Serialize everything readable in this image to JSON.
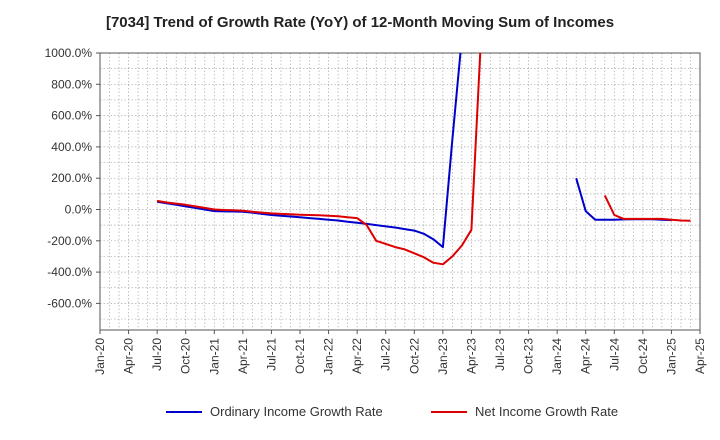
{
  "chart_data": {
    "type": "line",
    "title": "[7034]  Trend of Growth Rate (YoY) of 12-Month Moving Sum of Incomes",
    "xlabel": "",
    "ylabel": "",
    "x_tick_labels": [
      "Jan-20",
      "Apr-20",
      "Jul-20",
      "Oct-20",
      "Jan-21",
      "Apr-21",
      "Jul-21",
      "Oct-21",
      "Jan-22",
      "Apr-22",
      "Jul-22",
      "Oct-22",
      "Jan-23",
      "Apr-23",
      "Jul-23",
      "Oct-23",
      "Jan-24",
      "Apr-24",
      "Jul-24",
      "Oct-24",
      "Jan-25",
      "Apr-25"
    ],
    "y_tick_values": [
      1000,
      800,
      600,
      400,
      200,
      0,
      -200,
      -400,
      -600
    ],
    "y_tick_labels": [
      "1000.0%",
      "800.0%",
      "600.0%",
      "400.0%",
      "200.0%",
      "0.0%",
      "-200.0%",
      "-400.0%",
      "-600.0%"
    ],
    "ylim": [
      -770,
      1000
    ],
    "grid": true,
    "legend_position": "bottom",
    "series": [
      {
        "name": "Ordinary Income Growth Rate",
        "color": "#0000cc",
        "points": [
          [
            "2020-07",
            50
          ],
          [
            "2020-08",
            40
          ],
          [
            "2020-09",
            30
          ],
          [
            "2020-10",
            20
          ],
          [
            "2020-11",
            10
          ],
          [
            "2020-12",
            0
          ],
          [
            "2021-01",
            -10
          ],
          [
            "2021-02",
            -12
          ],
          [
            "2021-03",
            -13
          ],
          [
            "2021-04",
            -15
          ],
          [
            "2021-05",
            -20
          ],
          [
            "2021-06",
            -28
          ],
          [
            "2021-07",
            -35
          ],
          [
            "2021-08",
            -40
          ],
          [
            "2021-09",
            -45
          ],
          [
            "2021-10",
            -50
          ],
          [
            "2021-11",
            -55
          ],
          [
            "2021-12",
            -60
          ],
          [
            "2022-01",
            -65
          ],
          [
            "2022-02",
            -70
          ],
          [
            "2022-03",
            -78
          ],
          [
            "2022-04",
            -85
          ],
          [
            "2022-05",
            -92
          ],
          [
            "2022-06",
            -100
          ],
          [
            "2022-07",
            -108
          ],
          [
            "2022-08",
            -115
          ],
          [
            "2022-09",
            -125
          ],
          [
            "2022-10",
            -135
          ],
          [
            "2022-11",
            -155
          ],
          [
            "2022-12",
            -190
          ],
          [
            "2023-01",
            -240
          ],
          [
            "2023-02",
            450
          ],
          [
            "2023-03",
            1100
          ]
        ],
        "segment_2": [
          [
            "2024-03",
            200
          ],
          [
            "2024-04",
            -10
          ],
          [
            "2024-05",
            -65
          ],
          [
            "2024-06",
            -65
          ],
          [
            "2024-07",
            -65
          ],
          [
            "2024-08",
            -63
          ],
          [
            "2024-09",
            -62
          ],
          [
            "2024-10",
            -62
          ],
          [
            "2024-11",
            -62
          ],
          [
            "2024-12",
            -65
          ],
          [
            "2025-01",
            -68
          ]
        ]
      },
      {
        "name": "Net Income Growth Rate",
        "color": "#dd0000",
        "points": [
          [
            "2020-07",
            55
          ],
          [
            "2020-08",
            45
          ],
          [
            "2020-09",
            38
          ],
          [
            "2020-10",
            30
          ],
          [
            "2020-11",
            20
          ],
          [
            "2020-12",
            10
          ],
          [
            "2021-01",
            0
          ],
          [
            "2021-02",
            -3
          ],
          [
            "2021-03",
            -5
          ],
          [
            "2021-04",
            -8
          ],
          [
            "2021-05",
            -15
          ],
          [
            "2021-06",
            -20
          ],
          [
            "2021-07",
            -25
          ],
          [
            "2021-08",
            -28
          ],
          [
            "2021-09",
            -30
          ],
          [
            "2021-10",
            -33
          ],
          [
            "2021-11",
            -35
          ],
          [
            "2021-12",
            -37
          ],
          [
            "2022-01",
            -40
          ],
          [
            "2022-02",
            -43
          ],
          [
            "2022-03",
            -50
          ],
          [
            "2022-04",
            -55
          ],
          [
            "2022-05",
            -100
          ],
          [
            "2022-06",
            -200
          ],
          [
            "2022-07",
            -220
          ],
          [
            "2022-08",
            -240
          ],
          [
            "2022-09",
            -255
          ],
          [
            "2022-10",
            -280
          ],
          [
            "2022-11",
            -305
          ],
          [
            "2022-12",
            -340
          ],
          [
            "2023-01",
            -350
          ],
          [
            "2023-02",
            -300
          ],
          [
            "2023-03",
            -230
          ],
          [
            "2023-04",
            -130
          ],
          [
            "2023-05",
            1100
          ]
        ],
        "segment_2": [
          [
            "2024-06",
            90
          ],
          [
            "2024-07",
            -35
          ],
          [
            "2024-08",
            -60
          ],
          [
            "2024-09",
            -60
          ],
          [
            "2024-10",
            -60
          ],
          [
            "2024-11",
            -60
          ],
          [
            "2024-12",
            -60
          ],
          [
            "2025-01",
            -65
          ],
          [
            "2025-02",
            -70
          ],
          [
            "2025-03",
            -72
          ]
        ]
      }
    ]
  }
}
